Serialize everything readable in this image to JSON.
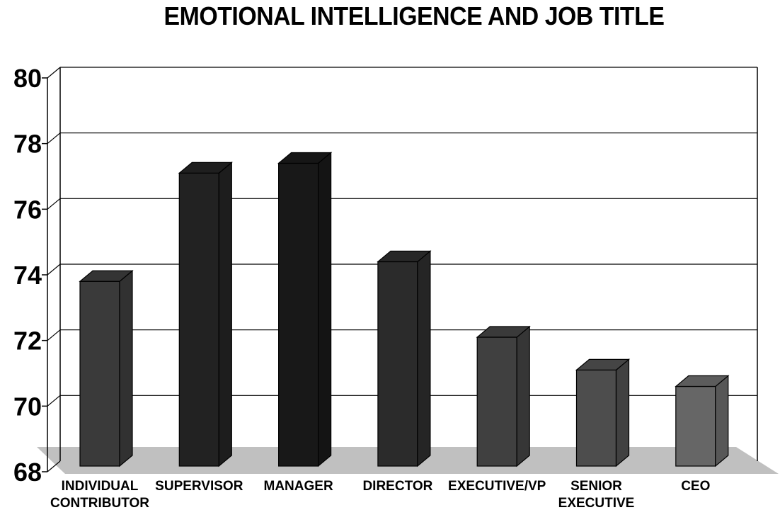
{
  "chart_data": {
    "type": "bar",
    "title": "EMOTIONAL INTELLIGENCE AND JOB TITLE",
    "xlabel": "",
    "ylabel": "",
    "categories": [
      [
        "INDIVIDUAL",
        "CONTRIBUTOR"
      ],
      [
        "SUPERVISOR"
      ],
      [
        "MANAGER"
      ],
      [
        "DIRECTOR"
      ],
      [
        "EXECUTIVE/VP"
      ],
      [
        "SENIOR",
        "EXECUTIVE"
      ],
      [
        "CEO"
      ]
    ],
    "values": [
      73.8,
      77.1,
      77.4,
      74.4,
      72.1,
      71.1,
      70.6
    ],
    "ylim": [
      68,
      80
    ],
    "yticks": [
      68,
      70,
      72,
      74,
      76,
      78,
      80
    ],
    "grid": true,
    "bar_colors": [
      "#3a3a3a",
      "#222222",
      "#181818",
      "#2b2b2b",
      "#404040",
      "#4d4d4d",
      "#666666"
    ],
    "floor_color": "#c0c0c0"
  }
}
